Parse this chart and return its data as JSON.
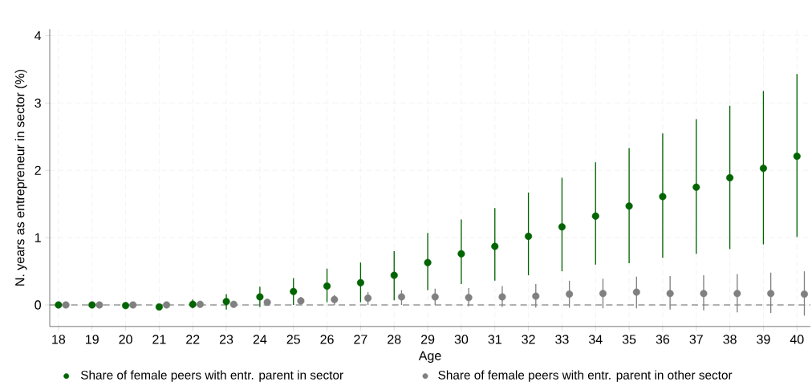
{
  "chart_data": {
    "type": "scatter",
    "xlabel": "Age",
    "ylabel": "N. years as entrepreneur in sector (%)",
    "xlim": [
      17.74,
      40.4
    ],
    "ylim": [
      -0.32,
      4.1
    ],
    "xticks": [
      18,
      19,
      20,
      21,
      22,
      23,
      24,
      25,
      26,
      27,
      28,
      29,
      30,
      31,
      32,
      33,
      34,
      35,
      36,
      37,
      38,
      39,
      40
    ],
    "yticks": [
      0,
      1,
      2,
      3,
      4
    ],
    "grid": true,
    "legend": "bottom",
    "marker": "circle",
    "ref_lines": [
      {
        "axis": "y",
        "value": 0,
        "color": "#666666",
        "line_style": "dashed"
      }
    ],
    "series": [
      {
        "name": "Share of female peers with entr. parent in sector",
        "color": "#006400",
        "x": [
          18,
          19,
          20,
          21,
          22,
          23,
          24,
          25,
          26,
          27,
          28,
          29,
          30,
          31,
          32,
          33,
          34,
          35,
          36,
          37,
          38,
          39,
          40
        ],
        "values": [
          0,
          0,
          -0.01,
          -0.03,
          0.01,
          0.05,
          0.12,
          0.2,
          0.28,
          0.33,
          0.44,
          0.63,
          0.76,
          0.87,
          1.02,
          1.16,
          1.32,
          1.47,
          1.61,
          1.75,
          1.89,
          2.03,
          2.21
        ],
        "errors": [
          null,
          null,
          null,
          null,
          [
            -0.05,
            0.08
          ],
          [
            -0.07,
            0.16
          ],
          [
            -0.03,
            0.27
          ],
          [
            0,
            0.4
          ],
          [
            0.04,
            0.54
          ],
          [
            0.04,
            0.63
          ],
          [
            0.07,
            0.8
          ],
          [
            0.22,
            1.07
          ],
          [
            0.31,
            1.27
          ],
          [
            0.36,
            1.44
          ],
          [
            0.44,
            1.67
          ],
          [
            0.5,
            1.89
          ],
          [
            0.6,
            2.12
          ],
          [
            0.62,
            2.33
          ],
          [
            0.7,
            2.55
          ],
          [
            0.76,
            2.76
          ],
          [
            0.83,
            2.96
          ],
          [
            0.9,
            3.18
          ],
          [
            1.01,
            3.43
          ]
        ]
      },
      {
        "name": "Share of female peers with entr. parent in other sector",
        "color": "#808080",
        "x": [
          18.22,
          19.22,
          20.22,
          21.22,
          22.22,
          23.22,
          24.22,
          25.22,
          26.22,
          27.22,
          28.22,
          29.22,
          30.22,
          31.22,
          32.22,
          33.22,
          34.22,
          35.22,
          36.22,
          37.22,
          38.22,
          39.22,
          40.22
        ],
        "values": [
          0,
          0,
          0,
          0,
          0.01,
          0.01,
          0.04,
          0.06,
          0.08,
          0.1,
          0.12,
          0.12,
          0.11,
          0.12,
          0.13,
          0.16,
          0.17,
          0.19,
          0.17,
          0.17,
          0.17,
          0.17,
          0.16
        ],
        "errors": [
          null,
          null,
          null,
          null,
          null,
          null,
          [
            0.01,
            0.07
          ],
          [
            0.01,
            0.12
          ],
          [
            0,
            0.15
          ],
          [
            0,
            0.19
          ],
          [
            0,
            0.22
          ],
          [
            0,
            0.24
          ],
          [
            -0.02,
            0.25
          ],
          [
            -0.03,
            0.28
          ],
          [
            -0.04,
            0.31
          ],
          [
            -0.04,
            0.36
          ],
          [
            -0.05,
            0.39
          ],
          [
            -0.05,
            0.42
          ],
          [
            -0.07,
            0.43
          ],
          [
            -0.08,
            0.44
          ],
          [
            -0.11,
            0.46
          ],
          [
            -0.12,
            0.48
          ],
          [
            -0.16,
            0.5
          ]
        ]
      }
    ]
  }
}
